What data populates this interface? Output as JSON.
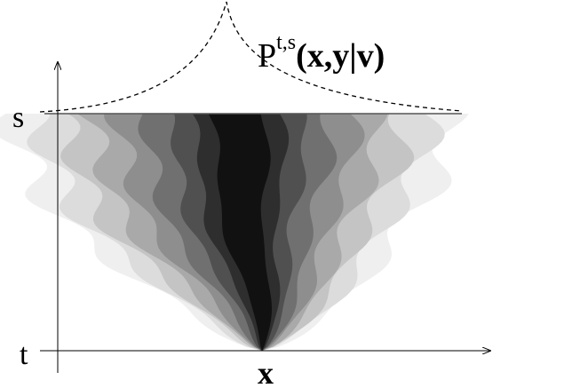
{
  "axis_labels": {
    "top": "s",
    "bottom": "t",
    "origin": "x"
  },
  "density_label": {
    "base": "P",
    "superscript": "t,s",
    "argument": "(x,y|v)"
  }
}
